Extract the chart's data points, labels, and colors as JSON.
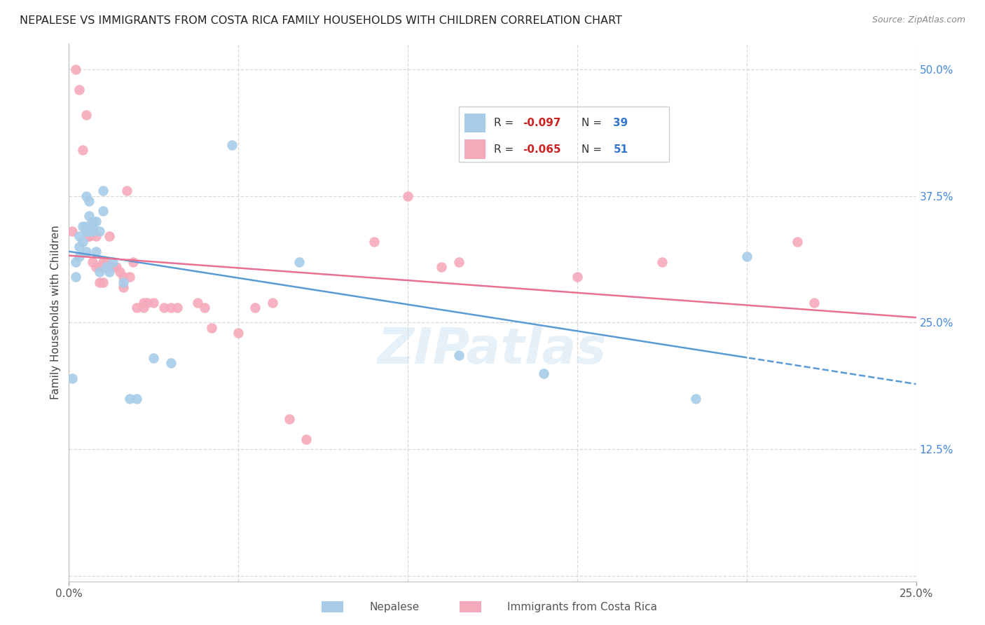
{
  "title": "NEPALESE VS IMMIGRANTS FROM COSTA RICA FAMILY HOUSEHOLDS WITH CHILDREN CORRELATION CHART",
  "source": "Source: ZipAtlas.com",
  "ylabel": "Family Households with Children",
  "xlim": [
    0.0,
    0.25
  ],
  "ylim": [
    -0.005,
    0.525
  ],
  "nepalese_color": "#a8cce8",
  "costa_rica_color": "#f5aabb",
  "nepalese_line_color": "#5b9bd5",
  "costa_rica_line_color": "#e87090",
  "watermark": "ZIPatlas",
  "background_color": "#ffffff",
  "grid_color": "#d8d8d8",
  "nepalese_x": [
    0.001,
    0.002,
    0.002,
    0.003,
    0.003,
    0.003,
    0.004,
    0.004,
    0.005,
    0.005,
    0.005,
    0.005,
    0.006,
    0.006,
    0.006,
    0.006,
    0.007,
    0.007,
    0.007,
    0.008,
    0.008,
    0.009,
    0.009,
    0.01,
    0.01,
    0.011,
    0.012,
    0.013,
    0.016,
    0.018,
    0.02,
    0.025,
    0.03,
    0.048,
    0.068,
    0.115,
    0.14,
    0.185,
    0.2
  ],
  "nepalese_y": [
    0.195,
    0.31,
    0.295,
    0.335,
    0.325,
    0.315,
    0.345,
    0.33,
    0.345,
    0.34,
    0.32,
    0.375,
    0.37,
    0.355,
    0.34,
    0.34,
    0.35,
    0.345,
    0.34,
    0.35,
    0.32,
    0.34,
    0.3,
    0.38,
    0.36,
    0.305,
    0.3,
    0.31,
    0.29,
    0.175,
    0.175,
    0.215,
    0.21,
    0.425,
    0.31,
    0.218,
    0.2,
    0.175,
    0.315
  ],
  "costa_rica_x": [
    0.001,
    0.002,
    0.003,
    0.004,
    0.005,
    0.005,
    0.006,
    0.006,
    0.007,
    0.007,
    0.008,
    0.008,
    0.009,
    0.009,
    0.01,
    0.01,
    0.011,
    0.012,
    0.012,
    0.013,
    0.014,
    0.015,
    0.016,
    0.016,
    0.017,
    0.018,
    0.019,
    0.02,
    0.022,
    0.022,
    0.023,
    0.025,
    0.028,
    0.03,
    0.032,
    0.038,
    0.04,
    0.042,
    0.05,
    0.055,
    0.06,
    0.065,
    0.07,
    0.09,
    0.1,
    0.11,
    0.115,
    0.15,
    0.175,
    0.215,
    0.22
  ],
  "costa_rica_y": [
    0.34,
    0.5,
    0.48,
    0.42,
    0.455,
    0.34,
    0.335,
    0.335,
    0.34,
    0.31,
    0.335,
    0.305,
    0.305,
    0.29,
    0.29,
    0.31,
    0.31,
    0.305,
    0.335,
    0.305,
    0.305,
    0.3,
    0.285,
    0.295,
    0.38,
    0.295,
    0.31,
    0.265,
    0.27,
    0.265,
    0.27,
    0.27,
    0.265,
    0.265,
    0.265,
    0.27,
    0.265,
    0.245,
    0.24,
    0.265,
    0.27,
    0.155,
    0.135,
    0.33,
    0.375,
    0.305,
    0.31,
    0.295,
    0.31,
    0.33,
    0.27
  ],
  "legend_r1": "R = -0.097",
  "legend_n1": "N = 39",
  "legend_r2": "R = -0.065",
  "legend_n2": "N = 51"
}
